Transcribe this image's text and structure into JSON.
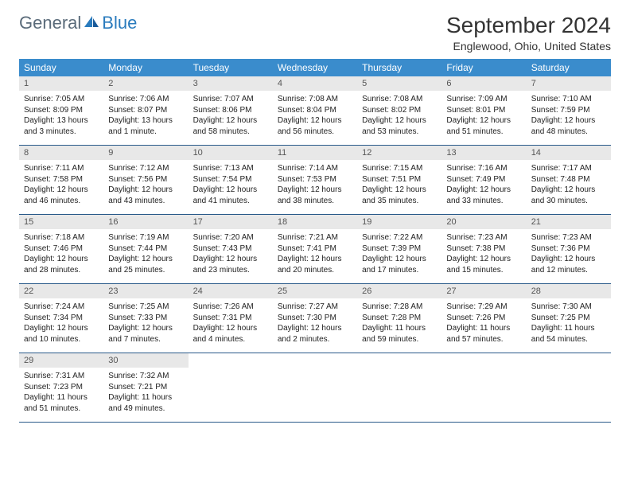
{
  "brand": {
    "part1": "General",
    "part2": "Blue"
  },
  "title": "September 2024",
  "location": "Englewood, Ohio, United States",
  "colors": {
    "header_bg": "#3a8ccc",
    "header_text": "#ffffff",
    "daynum_bg": "#e8e8e8",
    "daynum_text": "#555555",
    "border": "#2a5a8a",
    "body_text": "#222222",
    "brand_gray": "#5a6b7a",
    "brand_blue": "#2a7bbd"
  },
  "day_headers": [
    "Sunday",
    "Monday",
    "Tuesday",
    "Wednesday",
    "Thursday",
    "Friday",
    "Saturday"
  ],
  "weeks": [
    [
      {
        "n": "1",
        "sr": "Sunrise: 7:05 AM",
        "ss": "Sunset: 8:09 PM",
        "dl": "Daylight: 13 hours and 3 minutes."
      },
      {
        "n": "2",
        "sr": "Sunrise: 7:06 AM",
        "ss": "Sunset: 8:07 PM",
        "dl": "Daylight: 13 hours and 1 minute."
      },
      {
        "n": "3",
        "sr": "Sunrise: 7:07 AM",
        "ss": "Sunset: 8:06 PM",
        "dl": "Daylight: 12 hours and 58 minutes."
      },
      {
        "n": "4",
        "sr": "Sunrise: 7:08 AM",
        "ss": "Sunset: 8:04 PM",
        "dl": "Daylight: 12 hours and 56 minutes."
      },
      {
        "n": "5",
        "sr": "Sunrise: 7:08 AM",
        "ss": "Sunset: 8:02 PM",
        "dl": "Daylight: 12 hours and 53 minutes."
      },
      {
        "n": "6",
        "sr": "Sunrise: 7:09 AM",
        "ss": "Sunset: 8:01 PM",
        "dl": "Daylight: 12 hours and 51 minutes."
      },
      {
        "n": "7",
        "sr": "Sunrise: 7:10 AM",
        "ss": "Sunset: 7:59 PM",
        "dl": "Daylight: 12 hours and 48 minutes."
      }
    ],
    [
      {
        "n": "8",
        "sr": "Sunrise: 7:11 AM",
        "ss": "Sunset: 7:58 PM",
        "dl": "Daylight: 12 hours and 46 minutes."
      },
      {
        "n": "9",
        "sr": "Sunrise: 7:12 AM",
        "ss": "Sunset: 7:56 PM",
        "dl": "Daylight: 12 hours and 43 minutes."
      },
      {
        "n": "10",
        "sr": "Sunrise: 7:13 AM",
        "ss": "Sunset: 7:54 PM",
        "dl": "Daylight: 12 hours and 41 minutes."
      },
      {
        "n": "11",
        "sr": "Sunrise: 7:14 AM",
        "ss": "Sunset: 7:53 PM",
        "dl": "Daylight: 12 hours and 38 minutes."
      },
      {
        "n": "12",
        "sr": "Sunrise: 7:15 AM",
        "ss": "Sunset: 7:51 PM",
        "dl": "Daylight: 12 hours and 35 minutes."
      },
      {
        "n": "13",
        "sr": "Sunrise: 7:16 AM",
        "ss": "Sunset: 7:49 PM",
        "dl": "Daylight: 12 hours and 33 minutes."
      },
      {
        "n": "14",
        "sr": "Sunrise: 7:17 AM",
        "ss": "Sunset: 7:48 PM",
        "dl": "Daylight: 12 hours and 30 minutes."
      }
    ],
    [
      {
        "n": "15",
        "sr": "Sunrise: 7:18 AM",
        "ss": "Sunset: 7:46 PM",
        "dl": "Daylight: 12 hours and 28 minutes."
      },
      {
        "n": "16",
        "sr": "Sunrise: 7:19 AM",
        "ss": "Sunset: 7:44 PM",
        "dl": "Daylight: 12 hours and 25 minutes."
      },
      {
        "n": "17",
        "sr": "Sunrise: 7:20 AM",
        "ss": "Sunset: 7:43 PM",
        "dl": "Daylight: 12 hours and 23 minutes."
      },
      {
        "n": "18",
        "sr": "Sunrise: 7:21 AM",
        "ss": "Sunset: 7:41 PM",
        "dl": "Daylight: 12 hours and 20 minutes."
      },
      {
        "n": "19",
        "sr": "Sunrise: 7:22 AM",
        "ss": "Sunset: 7:39 PM",
        "dl": "Daylight: 12 hours and 17 minutes."
      },
      {
        "n": "20",
        "sr": "Sunrise: 7:23 AM",
        "ss": "Sunset: 7:38 PM",
        "dl": "Daylight: 12 hours and 15 minutes."
      },
      {
        "n": "21",
        "sr": "Sunrise: 7:23 AM",
        "ss": "Sunset: 7:36 PM",
        "dl": "Daylight: 12 hours and 12 minutes."
      }
    ],
    [
      {
        "n": "22",
        "sr": "Sunrise: 7:24 AM",
        "ss": "Sunset: 7:34 PM",
        "dl": "Daylight: 12 hours and 10 minutes."
      },
      {
        "n": "23",
        "sr": "Sunrise: 7:25 AM",
        "ss": "Sunset: 7:33 PM",
        "dl": "Daylight: 12 hours and 7 minutes."
      },
      {
        "n": "24",
        "sr": "Sunrise: 7:26 AM",
        "ss": "Sunset: 7:31 PM",
        "dl": "Daylight: 12 hours and 4 minutes."
      },
      {
        "n": "25",
        "sr": "Sunrise: 7:27 AM",
        "ss": "Sunset: 7:30 PM",
        "dl": "Daylight: 12 hours and 2 minutes."
      },
      {
        "n": "26",
        "sr": "Sunrise: 7:28 AM",
        "ss": "Sunset: 7:28 PM",
        "dl": "Daylight: 11 hours and 59 minutes."
      },
      {
        "n": "27",
        "sr": "Sunrise: 7:29 AM",
        "ss": "Sunset: 7:26 PM",
        "dl": "Daylight: 11 hours and 57 minutes."
      },
      {
        "n": "28",
        "sr": "Sunrise: 7:30 AM",
        "ss": "Sunset: 7:25 PM",
        "dl": "Daylight: 11 hours and 54 minutes."
      }
    ],
    [
      {
        "n": "29",
        "sr": "Sunrise: 7:31 AM",
        "ss": "Sunset: 7:23 PM",
        "dl": "Daylight: 11 hours and 51 minutes."
      },
      {
        "n": "30",
        "sr": "Sunrise: 7:32 AM",
        "ss": "Sunset: 7:21 PM",
        "dl": "Daylight: 11 hours and 49 minutes."
      },
      null,
      null,
      null,
      null,
      null
    ]
  ]
}
